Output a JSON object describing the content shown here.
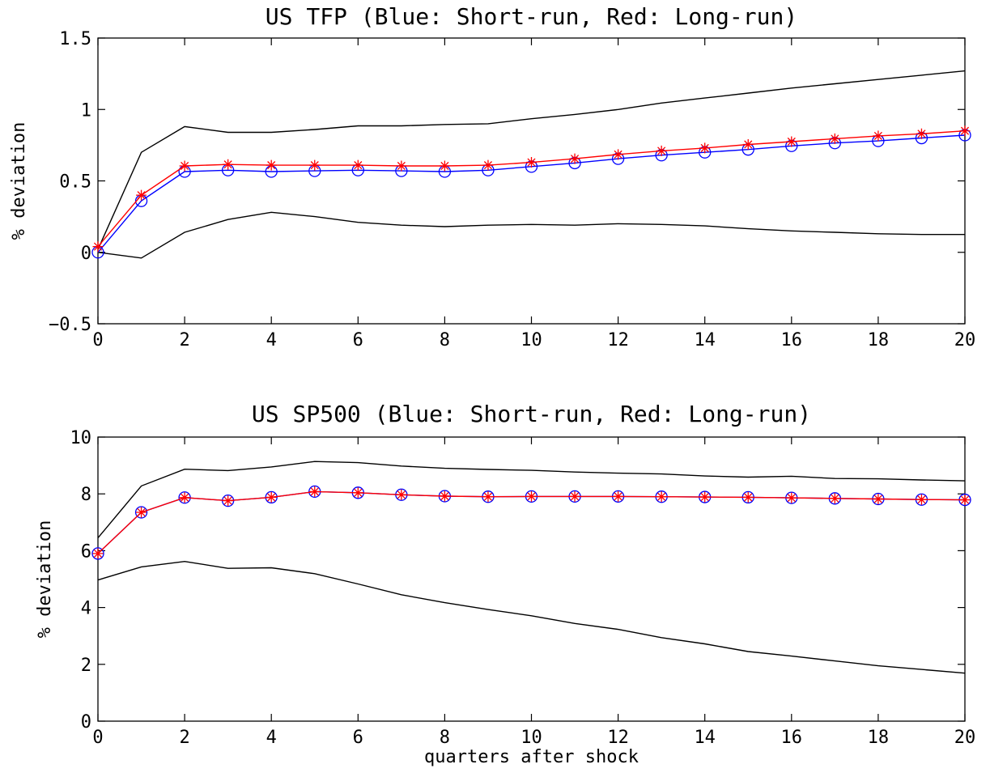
{
  "chart_data": [
    {
      "type": "line",
      "title": "US TFP (Blue: Short-run, Red: Long-run)",
      "xlabel": "",
      "ylabel": "% deviation",
      "xlim": [
        0,
        20
      ],
      "ylim": [
        -0.5,
        1.5
      ],
      "xticks": [
        0,
        2,
        4,
        6,
        8,
        10,
        12,
        14,
        16,
        18,
        20
      ],
      "yticks": [
        -0.5,
        0,
        0.5,
        1,
        1.5
      ],
      "x": [
        0,
        1,
        2,
        3,
        4,
        5,
        6,
        7,
        8,
        9,
        10,
        11,
        12,
        13,
        14,
        15,
        16,
        17,
        18,
        19,
        20
      ],
      "grid": false,
      "series": [
        {
          "role": "upper-band",
          "color": "#000000",
          "marker": "none",
          "values": [
            0.02,
            0.7,
            0.88,
            0.84,
            0.84,
            0.86,
            0.885,
            0.885,
            0.895,
            0.9,
            0.935,
            0.965,
            1.0,
            1.045,
            1.08,
            1.115,
            1.15,
            1.18,
            1.21,
            1.24,
            1.27
          ]
        },
        {
          "role": "lower-band",
          "color": "#000000",
          "marker": "none",
          "values": [
            0.0,
            -0.04,
            0.14,
            0.23,
            0.28,
            0.25,
            0.21,
            0.19,
            0.18,
            0.19,
            0.195,
            0.19,
            0.2,
            0.195,
            0.185,
            0.165,
            0.15,
            0.14,
            0.13,
            0.125,
            0.125
          ]
        },
        {
          "role": "short-run",
          "color": "#0000ff",
          "marker": "circle",
          "values": [
            0.0,
            0.36,
            0.565,
            0.575,
            0.565,
            0.57,
            0.575,
            0.57,
            0.565,
            0.575,
            0.6,
            0.625,
            0.655,
            0.68,
            0.7,
            0.72,
            0.745,
            0.765,
            0.78,
            0.8,
            0.82
          ]
        },
        {
          "role": "long-run",
          "color": "#ff0000",
          "marker": "star",
          "values": [
            0.04,
            0.4,
            0.605,
            0.615,
            0.61,
            0.61,
            0.61,
            0.605,
            0.605,
            0.61,
            0.63,
            0.655,
            0.685,
            0.71,
            0.73,
            0.755,
            0.775,
            0.795,
            0.815,
            0.83,
            0.85
          ]
        }
      ]
    },
    {
      "type": "line",
      "title": "US SP500 (Blue: Short-run, Red: Long-run)",
      "xlabel": "quarters after shock",
      "ylabel": "% deviation",
      "xlim": [
        0,
        20
      ],
      "ylim": [
        0,
        10
      ],
      "xticks": [
        0,
        2,
        4,
        6,
        8,
        10,
        12,
        14,
        16,
        18,
        20
      ],
      "yticks": [
        0,
        2,
        4,
        6,
        8,
        10
      ],
      "x": [
        0,
        1,
        2,
        3,
        4,
        5,
        6,
        7,
        8,
        9,
        10,
        11,
        12,
        13,
        14,
        15,
        16,
        17,
        18,
        19,
        20
      ],
      "grid": false,
      "series": [
        {
          "role": "upper-band",
          "color": "#000000",
          "marker": "none",
          "values": [
            6.45,
            8.28,
            8.87,
            8.82,
            8.95,
            9.14,
            9.1,
            8.98,
            8.9,
            8.86,
            8.83,
            8.77,
            8.73,
            8.7,
            8.63,
            8.59,
            8.62,
            8.54,
            8.53,
            8.49,
            8.46
          ]
        },
        {
          "role": "lower-band",
          "color": "#000000",
          "marker": "none",
          "values": [
            4.97,
            5.43,
            5.62,
            5.38,
            5.4,
            5.19,
            4.83,
            4.45,
            4.17,
            3.93,
            3.71,
            3.44,
            3.23,
            2.94,
            2.72,
            2.45,
            2.29,
            2.12,
            1.95,
            1.82,
            1.69
          ]
        },
        {
          "role": "short-run",
          "color": "#0000ff",
          "marker": "circle",
          "values": [
            5.9,
            7.35,
            7.87,
            7.76,
            7.88,
            8.08,
            8.04,
            7.97,
            7.92,
            7.9,
            7.91,
            7.91,
            7.91,
            7.9,
            7.89,
            7.88,
            7.86,
            7.84,
            7.82,
            7.8,
            7.79
          ]
        },
        {
          "role": "long-run",
          "color": "#ff0000",
          "marker": "star",
          "values": [
            5.9,
            7.35,
            7.87,
            7.76,
            7.88,
            8.08,
            8.04,
            7.97,
            7.92,
            7.9,
            7.91,
            7.91,
            7.91,
            7.9,
            7.89,
            7.88,
            7.86,
            7.84,
            7.82,
            7.8,
            7.79
          ]
        }
      ]
    }
  ]
}
